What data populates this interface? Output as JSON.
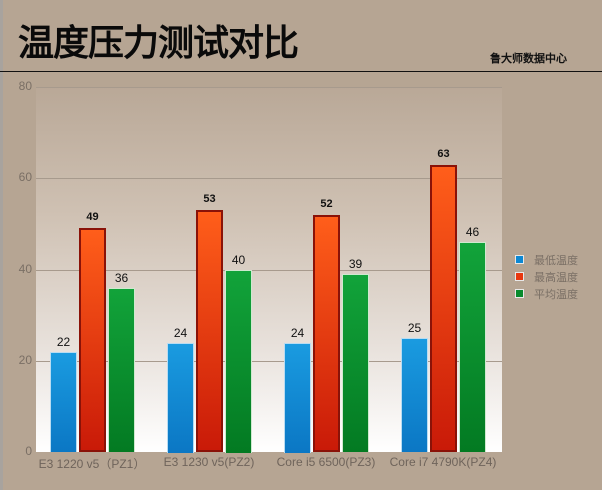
{
  "header": {
    "title": "温度压力测试对比",
    "source": "鲁大师数据中心"
  },
  "colors": {
    "background": "#b6a593",
    "min_temp": "#0b88d4",
    "max_temp": "#e8380f",
    "avg_temp": "#088a2c"
  },
  "legend": [
    {
      "label": "最低温度",
      "key": "min"
    },
    {
      "label": "最高温度",
      "key": "max"
    },
    {
      "label": "平均温度",
      "key": "avg"
    }
  ],
  "y_ticks": [
    "0",
    "20",
    "40",
    "60",
    "80"
  ],
  "chart_data": {
    "type": "bar",
    "title": "温度压力测试对比",
    "subtitle": "鲁大师数据中心",
    "xlabel": "",
    "ylabel": "",
    "ylim": [
      0,
      80
    ],
    "yticks": [
      0,
      20,
      40,
      60,
      80
    ],
    "grid": true,
    "legend_position": "right",
    "categories": [
      "E3 1220 v5（PZ1）",
      "E3 1230 v5(PZ2)",
      "Core i5 6500(PZ3)",
      "Core i7 4790K(PZ4)"
    ],
    "series": [
      {
        "name": "最低温度",
        "values": [
          22,
          24,
          24,
          25
        ]
      },
      {
        "name": "最高温度",
        "values": [
          49,
          53,
          52,
          63
        ]
      },
      {
        "name": "平均温度",
        "values": [
          36,
          40,
          39,
          46
        ]
      }
    ]
  }
}
